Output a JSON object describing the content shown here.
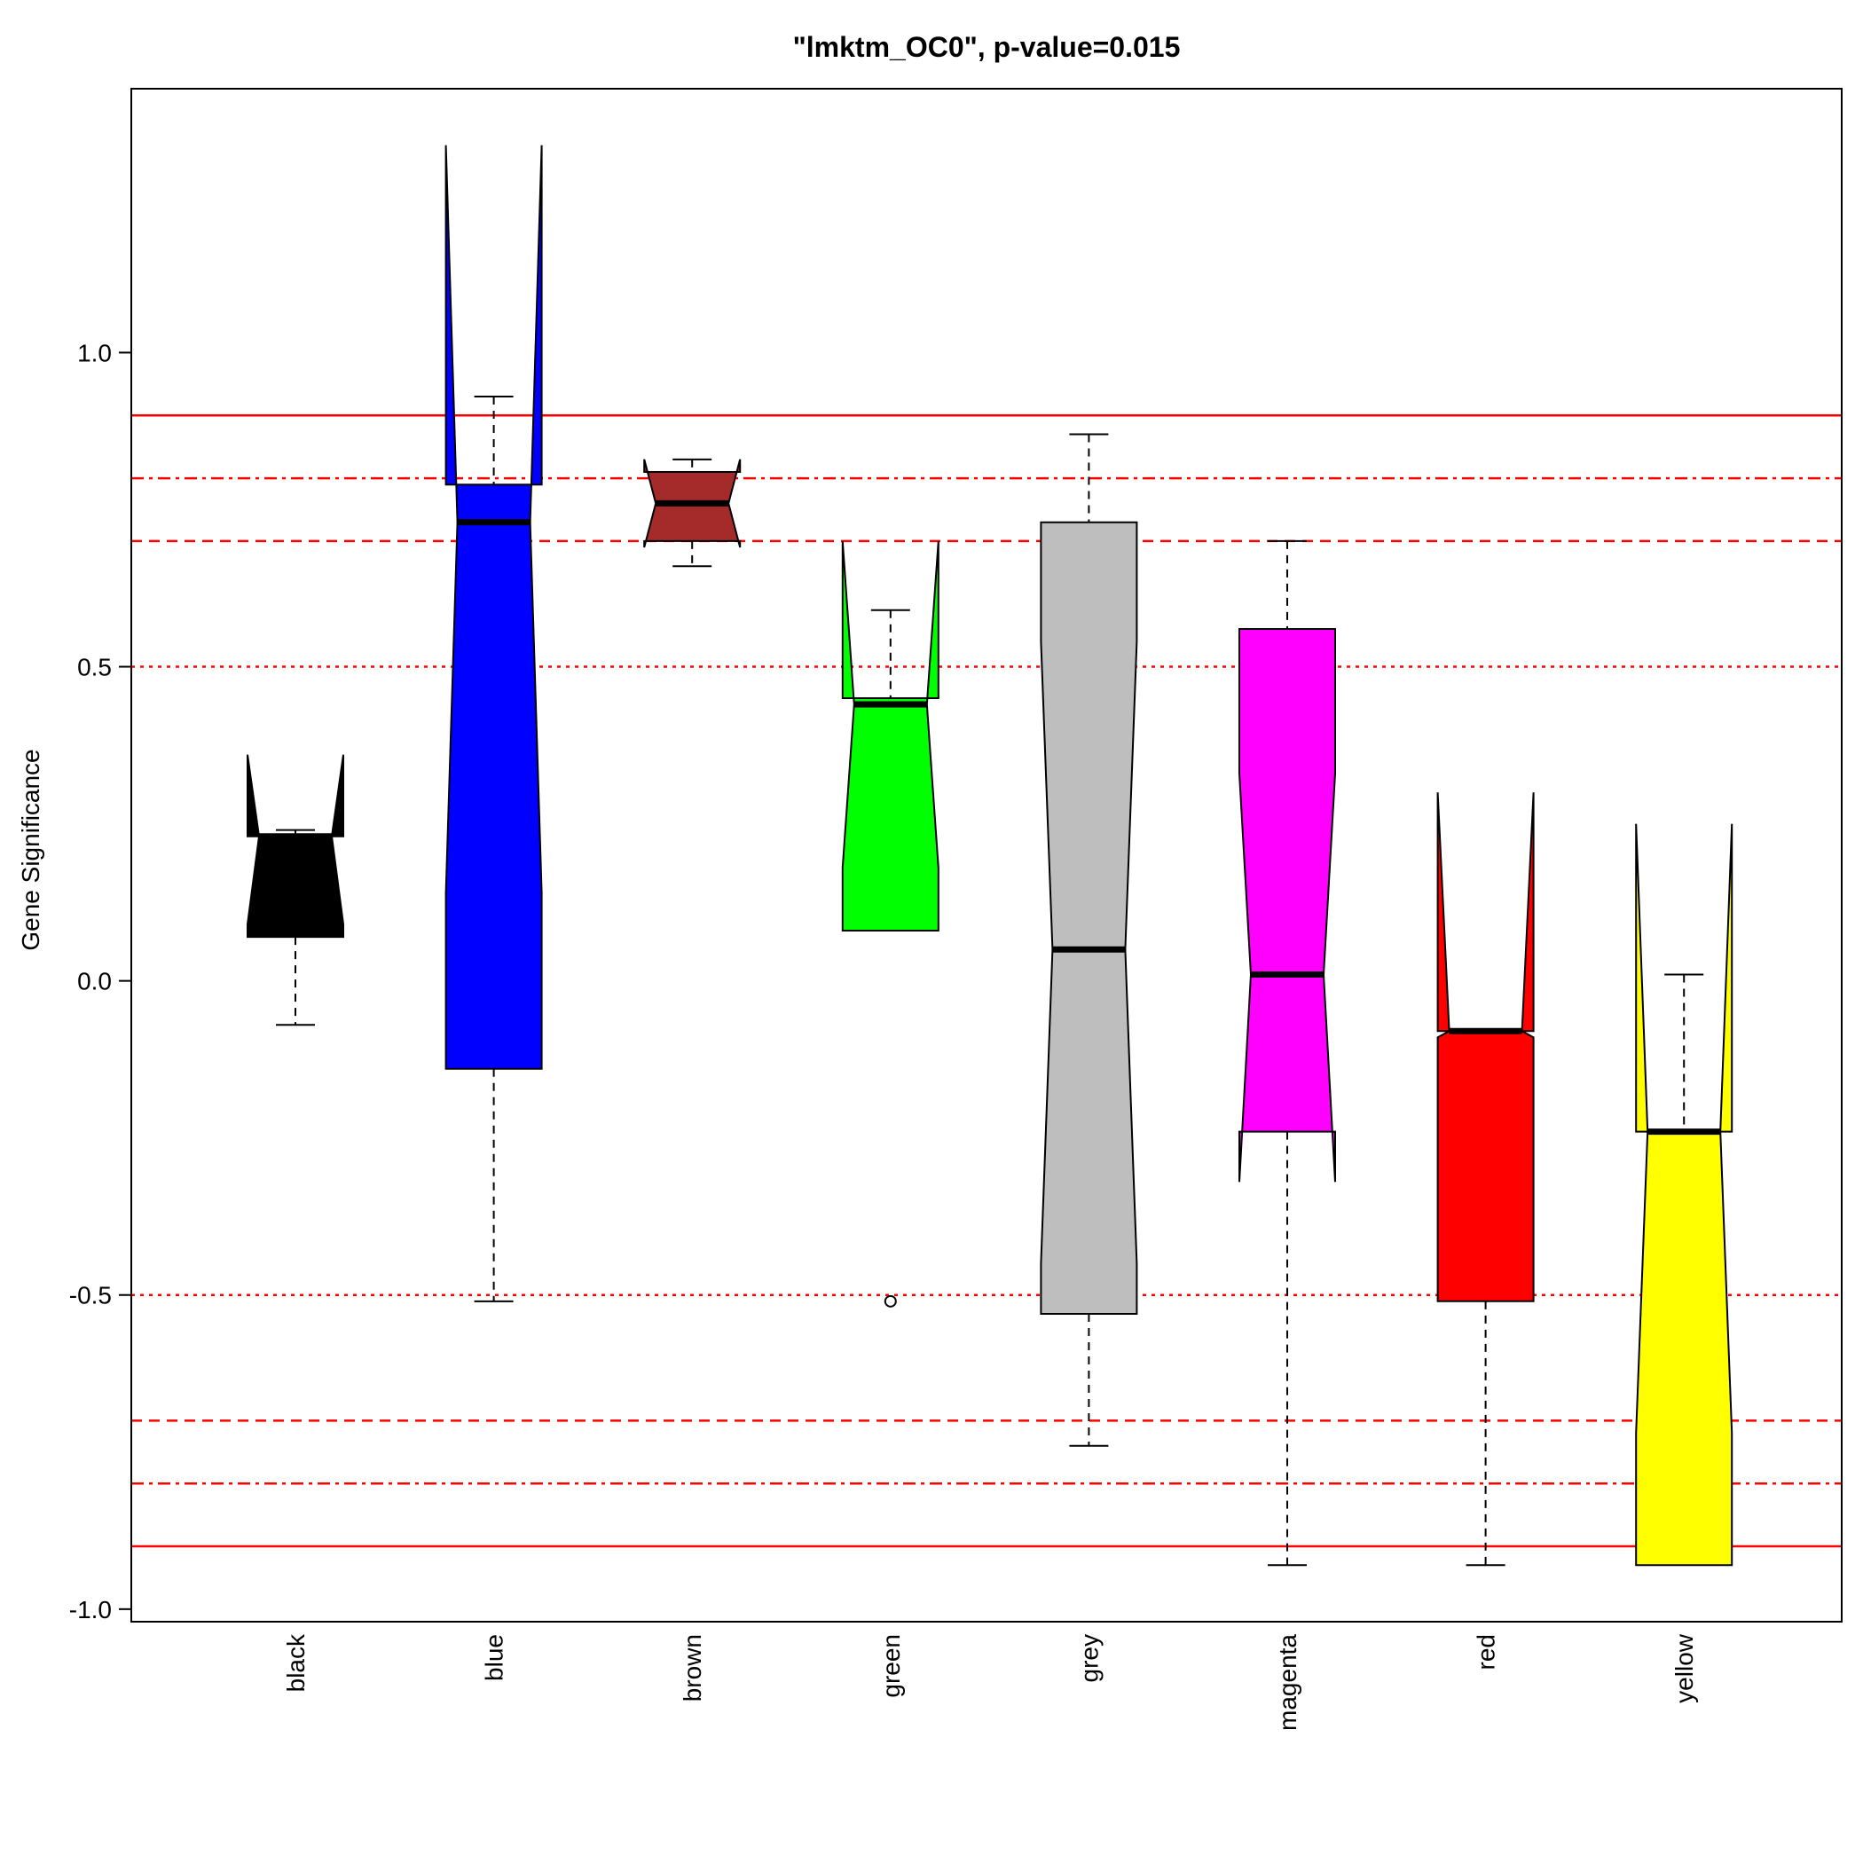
{
  "chart_data": {
    "type": "boxplot",
    "title": "\"lmktm_OC0\", p-value=0.015",
    "xlabel": "",
    "ylabel": "Gene Significance",
    "ylim": [
      -1.02,
      1.42
    ],
    "yticks": [
      -1.0,
      -0.5,
      0.0,
      0.5,
      1.0
    ],
    "ytick_labels": [
      "-1.0",
      "-0.5",
      "0.0",
      "0.5",
      "1.0"
    ],
    "notched": true,
    "grid": false,
    "boxes": [
      {
        "category": "black",
        "color": "#000000",
        "whisker_low": -0.07,
        "q1": 0.07,
        "median": 0.23,
        "q3": 0.23,
        "whisker_high": 0.24,
        "notch_low": 0.09,
        "notch_high": 0.36,
        "outliers": []
      },
      {
        "category": "blue",
        "color": "#0000ff",
        "whisker_low": -0.51,
        "q1": -0.14,
        "median": 0.73,
        "q3": 0.79,
        "whisker_high": 0.93,
        "notch_low": 0.14,
        "notch_high": 1.33,
        "outliers": []
      },
      {
        "category": "brown",
        "color": "#a52a2a",
        "whisker_low": 0.66,
        "q1": 0.7,
        "median": 0.76,
        "q3": 0.81,
        "whisker_high": 0.83,
        "notch_low": 0.69,
        "notch_high": 0.83,
        "outliers": []
      },
      {
        "category": "green",
        "color": "#00ff00",
        "whisker_low": 0.08,
        "q1": 0.08,
        "median": 0.44,
        "q3": 0.45,
        "whisker_high": 0.59,
        "notch_low": 0.18,
        "notch_high": 0.7,
        "outliers": [
          -0.51
        ]
      },
      {
        "category": "grey",
        "color": "#bebebe",
        "whisker_low": -0.74,
        "q1": -0.53,
        "median": 0.05,
        "q3": 0.73,
        "whisker_high": 0.87,
        "notch_low": -0.45,
        "notch_high": 0.54,
        "outliers": []
      },
      {
        "category": "magenta",
        "color": "#ff00ff",
        "whisker_low": -0.93,
        "q1": -0.24,
        "median": 0.01,
        "q3": 0.56,
        "whisker_high": 0.7,
        "notch_low": -0.32,
        "notch_high": 0.33,
        "outliers": []
      },
      {
        "category": "red",
        "color": "#ff0000",
        "whisker_low": -0.93,
        "q1": -0.51,
        "median": -0.08,
        "q3": -0.08,
        "whisker_high": -0.08,
        "notch_low": -0.09,
        "notch_high": 0.3,
        "outliers": []
      },
      {
        "category": "yellow",
        "color": "#ffff00",
        "whisker_low": -0.93,
        "q1": -0.93,
        "median": -0.24,
        "q3": -0.24,
        "whisker_high": 0.01,
        "notch_low": -0.72,
        "notch_high": 0.25,
        "outliers": []
      }
    ],
    "reference_lines": [
      {
        "y": 0.9,
        "style": "solid"
      },
      {
        "y": 0.8,
        "style": "dashdot"
      },
      {
        "y": 0.7,
        "style": "dashed"
      },
      {
        "y": 0.5,
        "style": "dotted"
      },
      {
        "y": -0.5,
        "style": "dotted"
      },
      {
        "y": -0.7,
        "style": "dashed"
      },
      {
        "y": -0.8,
        "style": "dashdot"
      },
      {
        "y": -0.9,
        "style": "solid"
      }
    ],
    "reference_line_color": "#ff0000"
  }
}
